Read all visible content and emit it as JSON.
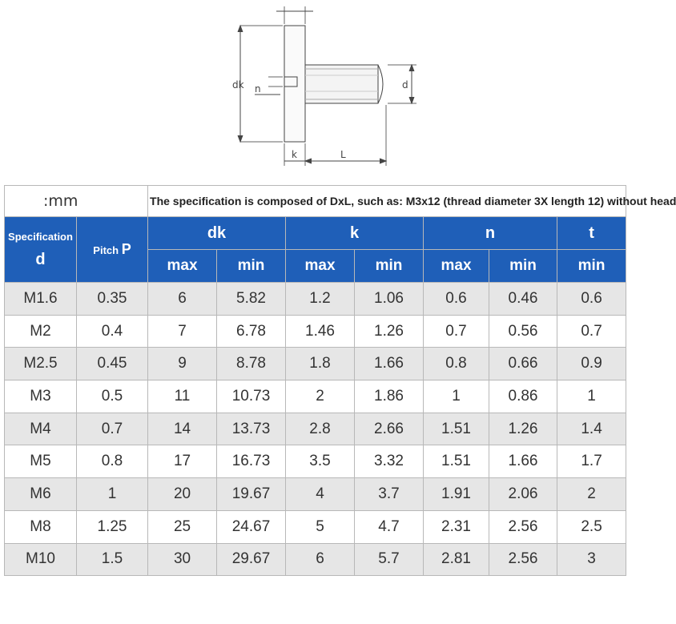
{
  "diagram": {
    "label_dk": "dk",
    "label_d": "d",
    "label_n": "n",
    "label_k": "k",
    "label_L": "L"
  },
  "table": {
    "unit": ":mm",
    "note": "The specification is composed of DxL, such as: M3x12 (thread diameter 3X length 12) without head",
    "header": {
      "spec_label": "Specification",
      "spec_symbol": "d",
      "pitch_label": "Pitch",
      "pitch_symbol": "P",
      "groups": [
        "dk",
        "k",
        "n",
        "t"
      ],
      "sub": [
        "max",
        "min",
        "max",
        "min",
        "max",
        "min",
        "min"
      ]
    },
    "rows": [
      [
        "M1.6",
        "0.35",
        "6",
        "5.82",
        "1.2",
        "1.06",
        "0.6",
        "0.46",
        "0.6"
      ],
      [
        "M2",
        "0.4",
        "7",
        "6.78",
        "1.46",
        "1.26",
        "0.7",
        "0.56",
        "0.7"
      ],
      [
        "M2.5",
        "0.45",
        "9",
        "8.78",
        "1.8",
        "1.66",
        "0.8",
        "0.66",
        "0.9"
      ],
      [
        "M3",
        "0.5",
        "11",
        "10.73",
        "2",
        "1.86",
        "1",
        "0.86",
        "1"
      ],
      [
        "M4",
        "0.7",
        "14",
        "13.73",
        "2.8",
        "2.66",
        "1.51",
        "1.26",
        "1.4"
      ],
      [
        "M5",
        "0.8",
        "17",
        "16.73",
        "3.5",
        "3.32",
        "1.51",
        "1.66",
        "1.7"
      ],
      [
        "M6",
        "1",
        "20",
        "19.67",
        "4",
        "3.7",
        "1.91",
        "2.06",
        "2"
      ],
      [
        "M8",
        "1.25",
        "25",
        "24.67",
        "5",
        "4.7",
        "2.31",
        "2.56",
        "2.5"
      ],
      [
        "M10",
        "1.5",
        "30",
        "29.67",
        "6",
        "5.7",
        "2.81",
        "2.56",
        "3"
      ]
    ]
  },
  "colors": {
    "header_blue": "#1f5fb8",
    "row_alt": "#e6e6e6",
    "border": "#b8b8b8"
  }
}
